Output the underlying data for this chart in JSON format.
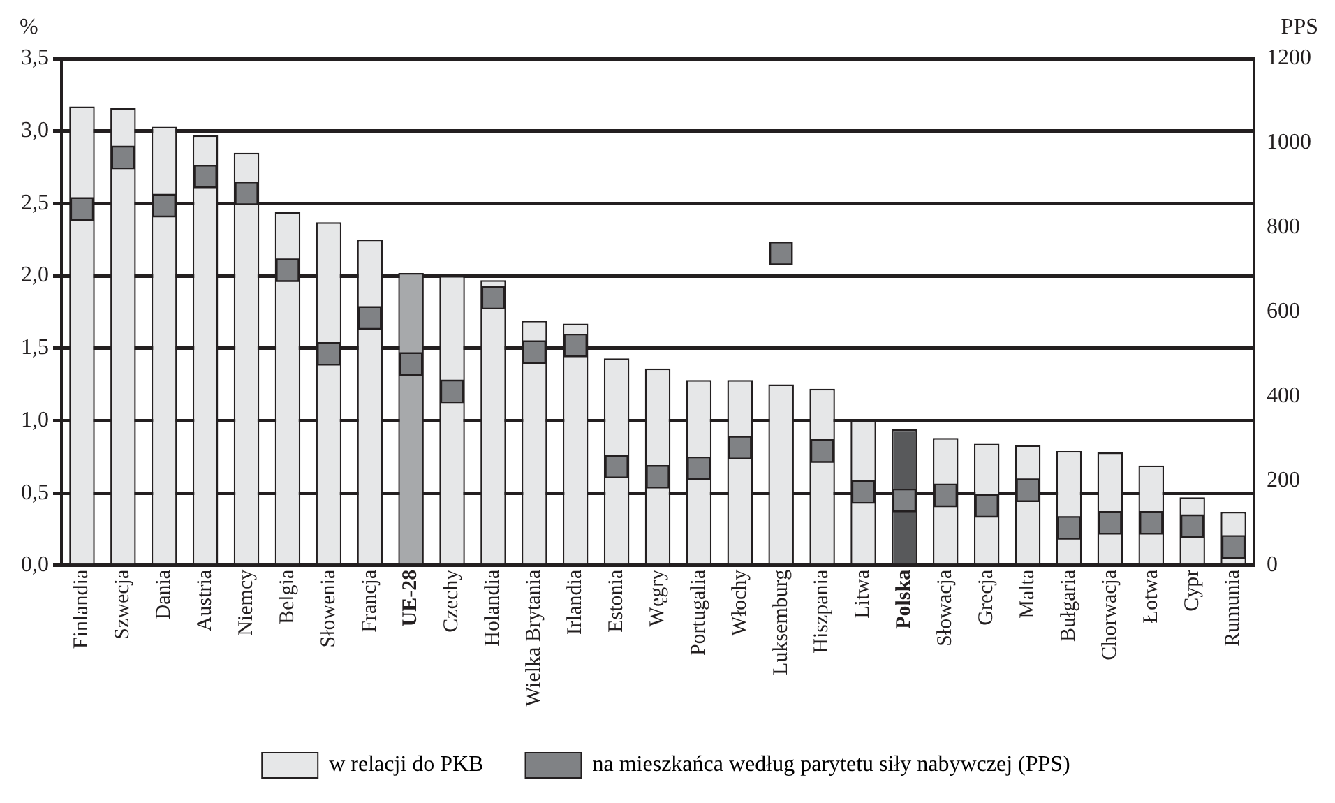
{
  "chart_data": {
    "type": "bar",
    "ylabel": "%",
    "y2label": "PPS",
    "categories": [
      "Finlandia",
      "Szwecja",
      "Dania",
      "Austria",
      "Niemcy",
      "Belgia",
      "Słowenia",
      "Francja",
      "UE-28",
      "Czechy",
      "Holandia",
      "Wielka Brytania",
      "Irlandia",
      "Estonia",
      "Węgry",
      "Portugalia",
      "Włochy",
      "Luksemburg",
      "Hiszpania",
      "Litwa",
      "Polska",
      "Słowacja",
      "Grecja",
      "Malta",
      "Bułgaria",
      "Chorwacja",
      "Łotwa",
      "Cypr",
      "Rumunia"
    ],
    "series": [
      {
        "name": "w relacji do PKB",
        "color": "#e6e7e8",
        "colors": [
          "#e6e7e8",
          "#e6e7e8",
          "#e6e7e8",
          "#e6e7e8",
          "#e6e7e8",
          "#e6e7e8",
          "#e6e7e8",
          "#e6e7e8",
          "#a7a9ab",
          "#e6e7e8",
          "#e6e7e8",
          "#e6e7e8",
          "#e6e7e8",
          "#e6e7e8",
          "#e6e7e8",
          "#e6e7e8",
          "#e6e7e8",
          "#e6e7e8",
          "#e6e7e8",
          "#e6e7e8",
          "#58595b",
          "#e6e7e8",
          "#e6e7e8",
          "#e6e7e8",
          "#e6e7e8",
          "#e6e7e8",
          "#e6e7e8",
          "#e6e7e8",
          "#e6e7e8"
        ],
        "values": [
          3.17,
          3.16,
          3.03,
          2.97,
          2.85,
          2.44,
          2.37,
          2.25,
          2.02,
          2.0,
          1.97,
          1.69,
          1.67,
          1.43,
          1.36,
          1.28,
          1.28,
          1.25,
          1.22,
          1.0,
          0.94,
          0.88,
          0.84,
          0.83,
          0.79,
          0.78,
          0.69,
          0.47,
          0.37
        ]
      },
      {
        "name": "na mieszkańca według parytetu siły nabywczej (PPS)",
        "type": "scatter",
        "axis": "y2",
        "marker": "square",
        "color": "#808285",
        "x": [
          "Finlandia",
          "Szwecja",
          "Dania",
          "Austria",
          "Niemcy",
          "Belgia",
          "Słowenia",
          "Francja",
          "UE-28",
          "Czechy",
          "Holandia",
          "Wielka Brytania",
          "Irlandia",
          "Estonia",
          "Węgry",
          "Portugalia",
          "Włochy",
          "Luksemburg",
          "Hiszpania",
          "Litwa",
          "Polska",
          "Słowacja",
          "Grecja",
          "Malta",
          "Bułgaria",
          "Chorwacja",
          "Łotwa",
          "Cypr",
          "Rumunia"
        ],
        "values": [
          844,
          966,
          852,
          921,
          881,
          699,
          501,
          586,
          477,
          412,
          634,
          505,
          521,
          234,
          210,
          230,
          279,
          739,
          271,
          174,
          154,
          166,
          141,
          178,
          89,
          101,
          101,
          93,
          44
        ]
      }
    ],
    "ylim": [
      0,
      3.5
    ],
    "yticks": [
      {
        "value": 0,
        "label": "0,0"
      },
      {
        "value": 0.5,
        "label": "0,5"
      },
      {
        "value": 1,
        "label": "1,0"
      },
      {
        "value": 1.5,
        "label": "1,5"
      },
      {
        "value": 2,
        "label": "2,0"
      },
      {
        "value": 2.5,
        "label": "2,5"
      },
      {
        "value": 3,
        "label": "3,0"
      },
      {
        "value": 3.5,
        "label": "3,5"
      }
    ],
    "y2lim": [
      0,
      1200
    ],
    "y2ticks": [
      0,
      200,
      400,
      600,
      800,
      1000,
      1200
    ],
    "grid": "y",
    "legend": "bottom"
  }
}
